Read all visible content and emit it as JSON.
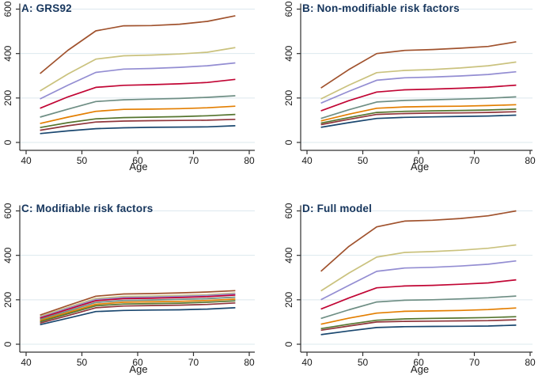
{
  "figure": {
    "background": "#ffffff",
    "grid_color": "#dce8ee",
    "axis_color": "#303030",
    "tick_label_color": "#1a1a1a",
    "title_color": "#17365d"
  },
  "chart_data": [
    {
      "id": "A",
      "type": "line",
      "title": "A: GRS92",
      "xlabel": "Age",
      "ylabel": "",
      "xlim": [
        40,
        80
      ],
      "ylim": [
        0,
        600
      ],
      "xticks": [
        40,
        50,
        60,
        70,
        80
      ],
      "yticks": [
        0,
        200,
        400,
        600
      ],
      "grid": true,
      "legend": "none",
      "x": [
        42.5,
        47.5,
        52.5,
        57.5,
        62.5,
        67.5,
        72.5,
        77.5
      ],
      "series": [
        {
          "name": "sienna",
          "color": "#A0522D",
          "values": [
            310,
            415,
            502,
            525,
            526,
            532,
            545,
            570
          ]
        },
        {
          "name": "khaki",
          "color": "#CAC27E",
          "values": [
            232,
            308,
            375,
            390,
            393,
            398,
            406,
            427
          ]
        },
        {
          "name": "lavender",
          "color": "#938DD2",
          "values": [
            196,
            258,
            315,
            330,
            333,
            338,
            345,
            358
          ]
        },
        {
          "name": "cranberry",
          "color": "#C10534",
          "values": [
            154,
            205,
            248,
            257,
            260,
            264,
            270,
            284
          ]
        },
        {
          "name": "teal",
          "color": "#6E8E84",
          "values": [
            114,
            150,
            184,
            192,
            195,
            198,
            203,
            210
          ]
        },
        {
          "name": "dkorange",
          "color": "#E37E00",
          "values": [
            85,
            114,
            140,
            149,
            150,
            152,
            156,
            163
          ]
        },
        {
          "name": "forest-green",
          "color": "#55752F",
          "values": [
            67,
            89,
            106,
            112,
            114,
            116,
            120,
            126
          ]
        },
        {
          "name": "maroon",
          "color": "#90353B",
          "values": [
            55,
            75,
            92,
            96,
            98,
            99,
            100,
            104
          ]
        },
        {
          "name": "navy",
          "color": "#1A476F",
          "values": [
            40,
            52,
            62,
            66,
            68,
            69,
            70,
            75
          ]
        }
      ]
    },
    {
      "id": "B",
      "type": "line",
      "title": "B: Non-modifiable risk factors",
      "xlabel": "Age",
      "ylabel": "",
      "xlim": [
        40,
        80
      ],
      "ylim": [
        0,
        600
      ],
      "xticks": [
        40,
        50,
        60,
        70,
        80
      ],
      "yticks": [
        0,
        200,
        400,
        600
      ],
      "grid": true,
      "legend": "none",
      "x": [
        42.5,
        47.5,
        52.5,
        57.5,
        62.5,
        67.5,
        72.5,
        77.5
      ],
      "series": [
        {
          "name": "sienna",
          "color": "#A0522D",
          "values": [
            245,
            328,
            400,
            414,
            418,
            424,
            432,
            453
          ]
        },
        {
          "name": "khaki",
          "color": "#CAC27E",
          "values": [
            196,
            258,
            314,
            324,
            328,
            335,
            345,
            362
          ]
        },
        {
          "name": "lavender",
          "color": "#938DD2",
          "values": [
            177,
            230,
            280,
            291,
            294,
            299,
            306,
            318
          ]
        },
        {
          "name": "cranberry",
          "color": "#C10534",
          "values": [
            142,
            188,
            227,
            237,
            240,
            244,
            249,
            258
          ]
        },
        {
          "name": "teal",
          "color": "#6E8E84",
          "values": [
            108,
            147,
            182,
            189,
            192,
            195,
            199,
            205
          ]
        },
        {
          "name": "dkorange",
          "color": "#E37E00",
          "values": [
            97,
            127,
            154,
            160,
            162,
            163,
            166,
            170
          ]
        },
        {
          "name": "forest-green",
          "color": "#55752F",
          "values": [
            87,
            112,
            135,
            140,
            142,
            144,
            146,
            150
          ]
        },
        {
          "name": "maroon",
          "color": "#90353B",
          "values": [
            80,
            104,
            126,
            130,
            132,
            133,
            135,
            138
          ]
        },
        {
          "name": "navy",
          "color": "#1A476F",
          "values": [
            68,
            89,
            108,
            113,
            115,
            117,
            119,
            123
          ]
        }
      ]
    },
    {
      "id": "C",
      "type": "line",
      "title": "C: Modifiable risk factors",
      "xlabel": "Age",
      "ylabel": "",
      "xlim": [
        40,
        80
      ],
      "ylim": [
        0,
        600
      ],
      "xticks": [
        40,
        50,
        60,
        70,
        80
      ],
      "yticks": [
        0,
        200,
        400,
        600
      ],
      "grid": true,
      "legend": "none",
      "x": [
        42.5,
        47.5,
        52.5,
        57.5,
        62.5,
        67.5,
        72.5,
        77.5
      ],
      "series": [
        {
          "name": "sienna",
          "color": "#A0522D",
          "values": [
            131,
            174,
            216,
            226,
            228,
            231,
            235,
            241
          ]
        },
        {
          "name": "khaki",
          "color": "#CAC27E",
          "values": [
            125,
            166,
            206,
            215,
            217,
            220,
            223,
            230
          ]
        },
        {
          "name": "lavender",
          "color": "#938DD2",
          "values": [
            121,
            162,
            201,
            210,
            212,
            215,
            219,
            226
          ]
        },
        {
          "name": "cranberry",
          "color": "#C10534",
          "values": [
            117,
            157,
            196,
            205,
            207,
            210,
            214,
            221
          ]
        },
        {
          "name": "teal",
          "color": "#6E8E84",
          "values": [
            112,
            150,
            188,
            197,
            199,
            202,
            205,
            212
          ]
        },
        {
          "name": "dkorange",
          "color": "#E37E00",
          "values": [
            106,
            143,
            180,
            189,
            191,
            193,
            197,
            203
          ]
        },
        {
          "name": "forest-green",
          "color": "#55752F",
          "values": [
            101,
            137,
            173,
            181,
            183,
            185,
            189,
            195
          ]
        },
        {
          "name": "maroon",
          "color": "#90353B",
          "values": [
            95,
            129,
            164,
            172,
            174,
            176,
            179,
            186
          ]
        },
        {
          "name": "navy",
          "color": "#1A476F",
          "values": [
            88,
            117,
            147,
            152,
            154,
            155,
            158,
            164
          ]
        }
      ]
    },
    {
      "id": "D",
      "type": "line",
      "title": "D: Full model",
      "xlabel": "Age",
      "ylabel": "",
      "xlim": [
        40,
        80
      ],
      "ylim": [
        0,
        600
      ],
      "xticks": [
        40,
        50,
        60,
        70,
        80
      ],
      "yticks": [
        0,
        200,
        400,
        600
      ],
      "grid": true,
      "legend": "none",
      "x": [
        42.5,
        47.5,
        52.5,
        57.5,
        62.5,
        67.5,
        72.5,
        77.5
      ],
      "series": [
        {
          "name": "sienna",
          "color": "#A0522D",
          "values": [
            328,
            440,
            528,
            554,
            558,
            566,
            578,
            600
          ]
        },
        {
          "name": "khaki",
          "color": "#CAC27E",
          "values": [
            240,
            320,
            392,
            413,
            417,
            423,
            432,
            447
          ]
        },
        {
          "name": "lavender",
          "color": "#938DD2",
          "values": [
            200,
            265,
            328,
            343,
            346,
            352,
            360,
            375
          ]
        },
        {
          "name": "cranberry",
          "color": "#C10534",
          "values": [
            158,
            208,
            254,
            262,
            265,
            270,
            276,
            290
          ]
        },
        {
          "name": "teal",
          "color": "#6E8E84",
          "values": [
            116,
            155,
            190,
            198,
            200,
            204,
            209,
            217
          ]
        },
        {
          "name": "dkorange",
          "color": "#E37E00",
          "values": [
            90,
            117,
            140,
            148,
            150,
            152,
            156,
            163
          ]
        },
        {
          "name": "forest-green",
          "color": "#55752F",
          "values": [
            70,
            90,
            108,
            114,
            116,
            118,
            120,
            124
          ]
        },
        {
          "name": "maroon",
          "color": "#90353B",
          "values": [
            63,
            82,
            100,
            103,
            104,
            105,
            106,
            110
          ]
        },
        {
          "name": "navy",
          "color": "#1A476F",
          "values": [
            43,
            60,
            75,
            79,
            80,
            81,
            82,
            86
          ]
        }
      ]
    }
  ]
}
